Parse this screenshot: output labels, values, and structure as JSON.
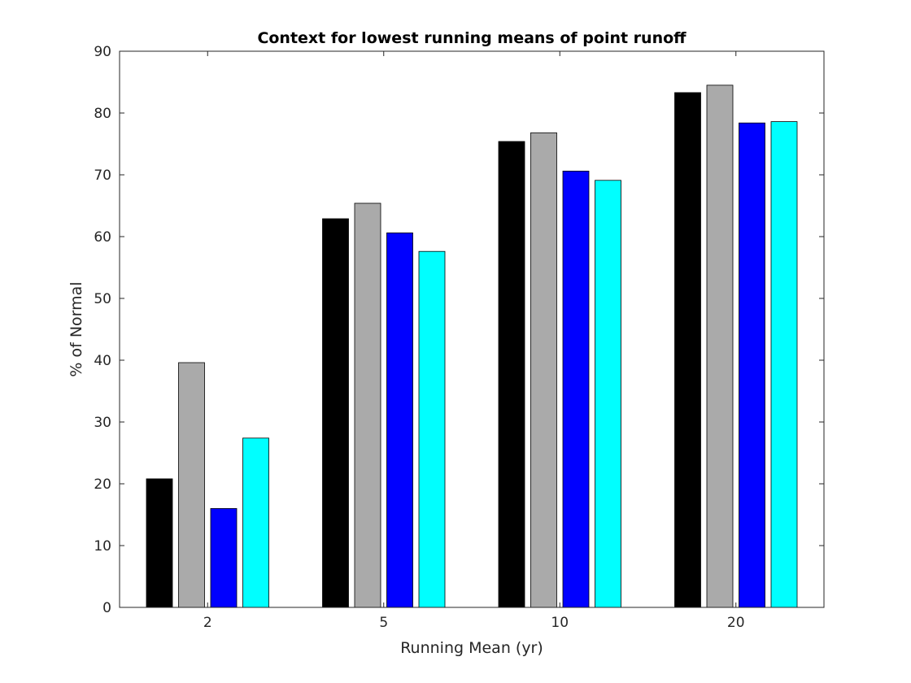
{
  "chart_data": {
    "type": "bar",
    "title": "Context for lowest running means of point runoff",
    "xlabel": "Running Mean (yr)",
    "ylabel": "% of Normal",
    "categories": [
      "2",
      "5",
      "10",
      "20"
    ],
    "ylim": [
      0,
      90
    ],
    "yticks": [
      0,
      10,
      20,
      30,
      40,
      50,
      60,
      70,
      80,
      90
    ],
    "grid": false,
    "legend": "none",
    "series": [
      {
        "color": "#000000",
        "values": [
          20.8,
          62.9,
          75.4,
          83.3
        ]
      },
      {
        "color": "#aaaaaa",
        "values": [
          39.6,
          65.4,
          76.8,
          84.5
        ]
      },
      {
        "color": "#0000ff",
        "values": [
          16.0,
          60.6,
          70.6,
          78.4
        ]
      },
      {
        "color": "#00ffff",
        "values": [
          27.4,
          57.6,
          69.1,
          78.6
        ]
      }
    ]
  }
}
